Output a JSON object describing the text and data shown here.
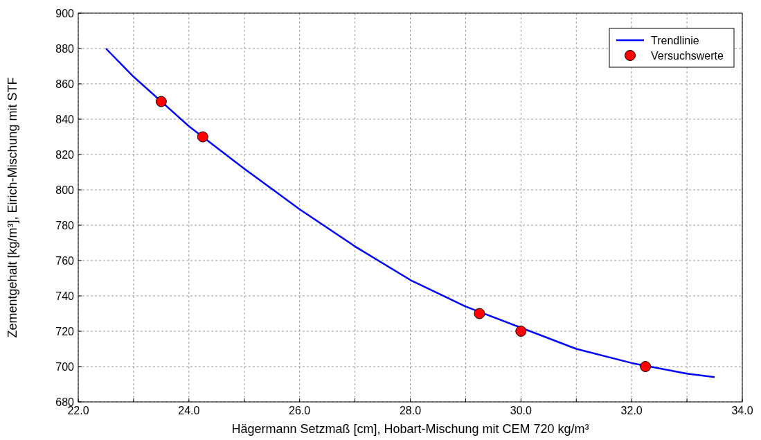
{
  "chart_data": {
    "type": "line",
    "xlabel": "Hägermann Setzmaß [cm], Hobart-Mischung mit CEM 720 kg/m³",
    "ylabel": "Zementgehalt [kg/m³], Eirich-Mischung mit STF",
    "xlim": [
      22,
      34
    ],
    "xticks": [
      {
        "value": 22,
        "label": "22.0"
      },
      {
        "value": 23,
        "label": null
      },
      {
        "value": 24,
        "label": "24.0"
      },
      {
        "value": 25,
        "label": null
      },
      {
        "value": 26,
        "label": "26.0"
      },
      {
        "value": 27,
        "label": null
      },
      {
        "value": 28,
        "label": "28.0"
      },
      {
        "value": 29,
        "label": null
      },
      {
        "value": 30,
        "label": "30.0"
      },
      {
        "value": 31,
        "label": null
      },
      {
        "value": 32,
        "label": "32.0"
      },
      {
        "value": 33,
        "label": null
      },
      {
        "value": 34,
        "label": "34.0"
      }
    ],
    "ylim": [
      680,
      900
    ],
    "yticks": [
      680,
      700,
      720,
      740,
      760,
      780,
      800,
      820,
      840,
      860,
      880,
      900
    ],
    "grid": true,
    "legend": "top right",
    "series": [
      {
        "name": "Trendlinie",
        "color": "#0000ff",
        "marker": "none",
        "line_style": "solid",
        "x": [
          22.5,
          23,
          24,
          25,
          26,
          27,
          28,
          29,
          31,
          32,
          33,
          33.5
        ],
        "values": [
          880,
          864,
          836,
          812,
          789,
          768,
          749,
          734,
          710,
          702,
          696,
          694
        ]
      },
      {
        "name": "Versuchswerte",
        "type": "scatter",
        "color": "#ff0000",
        "marker": "circle",
        "x": [
          23.5,
          24.25,
          29.25,
          30,
          32.25
        ],
        "values": [
          850,
          830,
          730,
          720,
          700
        ]
      }
    ]
  }
}
